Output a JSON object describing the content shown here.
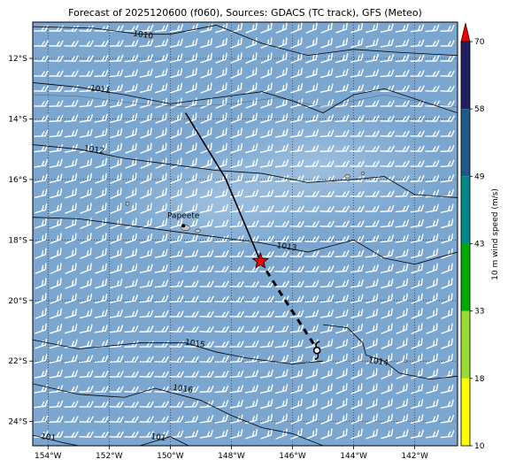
{
  "title": "Forecast of 2025120600 (f060), Sources: GDACS (TC track), GFS (Meteo)",
  "map": {
    "lon_range": [
      -154.5,
      -140.6
    ],
    "lat_range": [
      -24.8,
      -10.8
    ],
    "ocean_color": "#7aa6cf",
    "barb_color": "#ffffff",
    "x_ticks": [
      {
        "value": -154,
        "label": "154°W"
      },
      {
        "value": -152,
        "label": "152°W"
      },
      {
        "value": -150,
        "label": "150°W"
      },
      {
        "value": -148,
        "label": "148°W"
      },
      {
        "value": -146,
        "label": "146°W"
      },
      {
        "value": -144,
        "label": "144°W"
      },
      {
        "value": -142,
        "label": "142°W"
      }
    ],
    "y_ticks": [
      {
        "value": -12,
        "label": "12°S"
      },
      {
        "value": -14,
        "label": "14°S"
      },
      {
        "value": -16,
        "label": "16°S"
      },
      {
        "value": -18,
        "label": "18°S"
      },
      {
        "value": -20,
        "label": "20°S"
      },
      {
        "value": -22,
        "label": "22°S"
      },
      {
        "value": -24,
        "label": "24°S"
      }
    ],
    "isobars": [
      {
        "label": "1010",
        "label_lon": -150.9,
        "label_lat": -11.3,
        "points": [
          [
            -154.5,
            -10.95
          ],
          [
            -152.5,
            -11.0
          ],
          [
            -151.0,
            -11.2
          ],
          [
            -150.0,
            -11.2
          ],
          [
            -148.5,
            -10.9
          ],
          [
            -147.0,
            -11.5
          ],
          [
            -145.5,
            -11.9
          ],
          [
            -144.0,
            -11.7
          ],
          [
            -142.5,
            -11.8
          ],
          [
            -140.6,
            -11.9
          ]
        ]
      },
      {
        "label": "1011",
        "label_lon": -152.3,
        "label_lat": -13.1,
        "points": [
          [
            -154.5,
            -12.8
          ],
          [
            -153.0,
            -12.95
          ],
          [
            -151.5,
            -13.2
          ],
          [
            -150.0,
            -13.5
          ],
          [
            -148.5,
            -13.3
          ],
          [
            -147.0,
            -13.1
          ],
          [
            -146.0,
            -13.4
          ],
          [
            -145.0,
            -13.8
          ],
          [
            -144.0,
            -13.2
          ],
          [
            -143.0,
            -13.0
          ],
          [
            -141.8,
            -13.4
          ],
          [
            -140.6,
            -13.8
          ]
        ]
      },
      {
        "label": "1012",
        "label_lon": -152.5,
        "label_lat": -15.1,
        "points": [
          [
            -154.5,
            -14.85
          ],
          [
            -153.0,
            -15.0
          ],
          [
            -151.5,
            -15.3
          ],
          [
            -150.0,
            -15.5
          ],
          [
            -148.5,
            -15.7
          ],
          [
            -147.0,
            -15.8
          ],
          [
            -145.5,
            -16.1
          ],
          [
            -144.0,
            -16.0
          ],
          [
            -143.0,
            -15.9
          ],
          [
            -142.0,
            -16.5
          ],
          [
            -140.6,
            -16.6
          ]
        ]
      },
      {
        "label": "1013",
        "label_lon": -146.2,
        "label_lat": -18.3,
        "points": [
          [
            -154.5,
            -17.25
          ],
          [
            -153.0,
            -17.3
          ],
          [
            -151.5,
            -17.5
          ],
          [
            -150.0,
            -17.7
          ],
          [
            -148.5,
            -17.9
          ],
          [
            -147.0,
            -18.1
          ],
          [
            -145.5,
            -18.4
          ],
          [
            -144.0,
            -18.0
          ],
          [
            -143.0,
            -18.6
          ],
          [
            -142.0,
            -18.8
          ],
          [
            -140.6,
            -18.4
          ]
        ]
      },
      {
        "label": "1015",
        "label_lon": -149.2,
        "label_lat": -21.5,
        "points": [
          [
            -154.5,
            -21.3
          ],
          [
            -153.0,
            -21.6
          ],
          [
            -151.0,
            -21.4
          ],
          [
            -149.5,
            -21.4
          ],
          [
            -148.5,
            -21.7
          ],
          [
            -147.5,
            -21.9
          ],
          [
            -146.0,
            -22.1
          ],
          [
            -145.0,
            -22.0
          ]
        ]
      },
      {
        "label": "1014",
        "label_lon": -143.2,
        "label_lat": -22.1,
        "points": [
          [
            -145.0,
            -20.8
          ],
          [
            -144.2,
            -20.9
          ],
          [
            -143.7,
            -21.4
          ],
          [
            -143.6,
            -21.8
          ],
          [
            -143.0,
            -22.0
          ],
          [
            -142.5,
            -22.4
          ],
          [
            -141.5,
            -22.6
          ],
          [
            -140.6,
            -22.5
          ]
        ]
      },
      {
        "label": "1016",
        "label_lon": -149.6,
        "label_lat": -23.0,
        "points": [
          [
            -154.5,
            -22.75
          ],
          [
            -153.0,
            -23.1
          ],
          [
            -151.5,
            -23.2
          ],
          [
            -150.5,
            -22.9
          ],
          [
            -149.0,
            -23.3
          ],
          [
            -148.0,
            -23.8
          ],
          [
            -147.0,
            -24.2
          ],
          [
            -146.0,
            -24.4
          ],
          [
            -145.0,
            -24.8
          ]
        ]
      },
      {
        "label": "101",
        "label_lon": -154.0,
        "label_lat": -24.6,
        "points": [
          [
            -154.5,
            -24.45
          ],
          [
            -153.5,
            -24.7
          ],
          [
            -153.0,
            -24.8
          ]
        ]
      },
      {
        "label": "101",
        "label_lon": -150.4,
        "label_lat": -24.6,
        "points": [
          [
            -151.0,
            -24.8
          ],
          [
            -150.0,
            -24.5
          ],
          [
            -149.4,
            -24.8
          ]
        ]
      }
    ],
    "coastlines": [
      [
        [
          -154.5,
          -13.2
        ],
        [
          -153.0,
          -13.25
        ],
        [
          -151.0,
          -13.5
        ],
        [
          -149.5,
          -13.6
        ],
        [
          -148.0,
          -13.5
        ],
        [
          -146.5,
          -13.3
        ],
        [
          -145.0,
          -13.6
        ],
        [
          -143.0,
          -13.2
        ],
        [
          -141.5,
          -13.5
        ],
        [
          -140.6,
          -13.6
        ]
      ]
    ],
    "islands": [
      {
        "lon": -149.5,
        "lat": -17.6,
        "rx": 5,
        "ry": 3
      },
      {
        "lon": -149.1,
        "lat": -17.7,
        "rx": 3,
        "ry": 2
      },
      {
        "lon": -151.4,
        "lat": -16.8,
        "rx": 2,
        "ry": 2
      },
      {
        "lon": -144.2,
        "lat": -15.9,
        "rx": 3,
        "ry": 2
      },
      {
        "lon": -143.7,
        "lat": -15.8,
        "rx": 2,
        "ry": 1.5
      },
      {
        "lon": -142.3,
        "lat": -22.0,
        "rx": 1.5,
        "ry": 1.5
      }
    ],
    "city": {
      "name": "Papeete",
      "lon": -149.57,
      "lat": -17.53
    },
    "track_observed": [
      [
        -149.5,
        -13.8
      ],
      [
        -148.2,
        -15.95
      ],
      [
        -147.05,
        -18.7
      ]
    ],
    "track_forecast": [
      [
        -147.05,
        -18.7
      ],
      [
        -146.3,
        -19.9
      ],
      [
        -145.2,
        -21.6
      ]
    ],
    "current_position": {
      "lon": -147.05,
      "lat": -18.7
    },
    "forecast_position": {
      "lon": -145.2,
      "lat": -21.65
    }
  },
  "colorbar": {
    "label": "10 m wind speed (m/s)",
    "tick_labels": [
      "10",
      "18",
      "33",
      "43",
      "49",
      "58",
      "70"
    ],
    "colors": [
      "#ffff00",
      "#99dd33",
      "#00aa00",
      "#008888",
      "#1d5a8a",
      "#202060"
    ],
    "extend_color": "#ee0000"
  }
}
